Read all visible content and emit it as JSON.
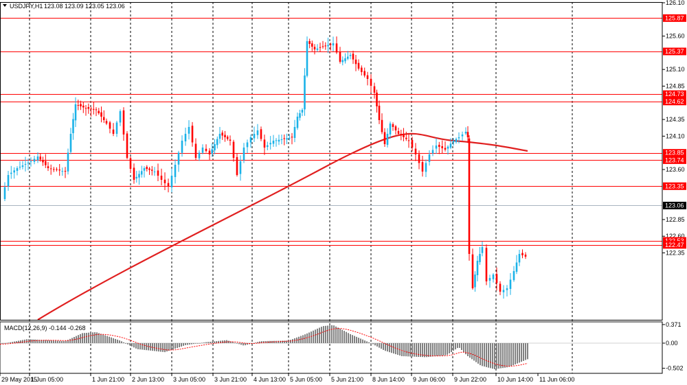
{
  "header": {
    "symbol": "USDJPY,H1",
    "ohlc": "123.08 123.09 123.05 123.06"
  },
  "macd": {
    "label": "MACD(12,26,9) -0.144 -0.268",
    "ticks": [
      "0.371",
      "0.00",
      "-0.502"
    ],
    "tick_values": [
      0.371,
      0,
      -0.502
    ],
    "histogram_color": "#808080",
    "signal_color": "#ff0000"
  },
  "chart_data": {
    "type": "candlestick",
    "title": "",
    "xlabel": "",
    "ylabel": "",
    "ylim": [
      122.3,
      126.1
    ],
    "y_ticks": [
      "126.10",
      "125.60",
      "125.10",
      "124.85",
      "124.35",
      "124.10",
      "123.60",
      "122.85",
      "122.60",
      "122.35"
    ],
    "y_tick_values": [
      126.1,
      125.6,
      125.1,
      124.85,
      124.35,
      124.1,
      123.6,
      122.85,
      122.6,
      122.35
    ],
    "x_ticks": [
      "29 May 2015",
      "1 Jun 05:00",
      "1 Jun 21:00",
      "2 Jun 13:00",
      "3 Jun 05:00",
      "3 Jun 21:00",
      "4 Jun 13:00",
      "5 Jun 05:00",
      "5 Jun 21:00",
      "8 Jun 14:00",
      "9 Jun 06:00",
      "9 Jun 22:00",
      "10 Jun 14:00",
      "11 Jun 06:00"
    ],
    "horizontal_levels": [
      {
        "label": "125.87",
        "value": 125.87
      },
      {
        "label": "125.37",
        "value": 125.37
      },
      {
        "label": "124.73",
        "value": 124.73
      },
      {
        "label": "124.62",
        "value": 124.62
      },
      {
        "label": "123.85",
        "value": 123.85
      },
      {
        "label": "123.74",
        "value": 123.74
      },
      {
        "label": "123.35",
        "value": 123.35
      },
      {
        "label": "122.53",
        "value": 122.53
      },
      {
        "label": "122.47",
        "value": 122.47
      }
    ],
    "current_price": {
      "label": "123.06",
      "value": 123.06
    },
    "level_color": "#ff0000",
    "bull_color": "#1ab2e8",
    "bear_color": "#ff0000",
    "ma_color": "#e02020",
    "ma_start": 122.2,
    "ma_end": 124.33
  }
}
